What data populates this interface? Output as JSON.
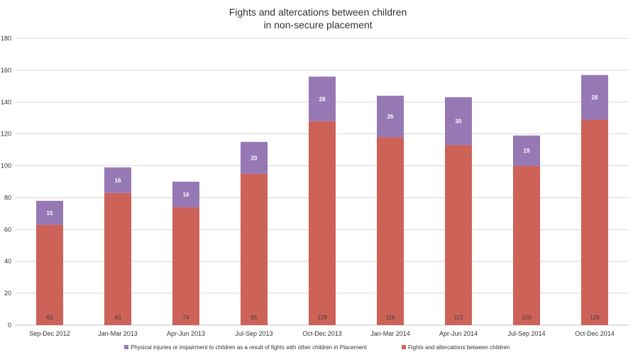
{
  "chart_data": {
    "type": "bar",
    "stacked": true,
    "title_lines": [
      "Fights and altercations between children",
      "in non-secure placement"
    ],
    "xlabel": "",
    "ylabel": "",
    "ylim": [
      0,
      180
    ],
    "yticks": [
      0,
      20,
      40,
      60,
      80,
      100,
      120,
      140,
      160,
      180
    ],
    "grid": true,
    "legend_position": "bottom",
    "categories": [
      "Sep-Dec 2012",
      "Jan-Mar 2013",
      "Apr-Jun 2013",
      "Jul-Sep 2013",
      "Oct-Dec 2013",
      "Jan-Mar 2014",
      "Apr-Jun 2014",
      "Jul-Sep 2014",
      "Oct-Dec 2014"
    ],
    "series": [
      {
        "name": "Fights and altercations between children",
        "color": "#cd6259",
        "values": [
          63,
          83,
          74,
          95,
          128,
          118,
          113,
          100,
          129
        ]
      },
      {
        "name": "Physical injuries or impairment to children as a result of fights with other children in Placement",
        "color": "#9678b5",
        "values": [
          15,
          16,
          16,
          20,
          28,
          26,
          30,
          19,
          28
        ]
      }
    ],
    "legend_order": [
      1,
      0
    ]
  }
}
